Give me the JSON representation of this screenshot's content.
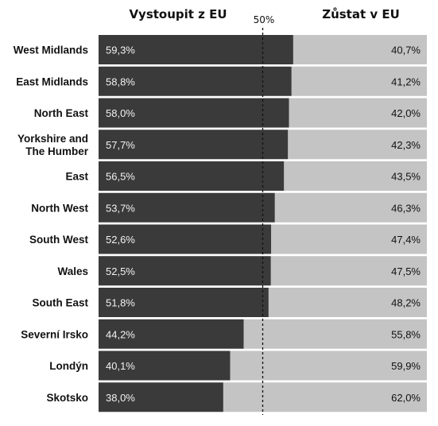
{
  "chart_data": {
    "type": "bar",
    "stacked": true,
    "orientation": "horizontal",
    "header_left": "Vystoupit z EU",
    "header_right": "Zůstat v EU",
    "reference_line_label": "50%",
    "reference_value": 50,
    "xlim": [
      0,
      100
    ],
    "colors": {
      "leave": "#3a3a3a",
      "remain": "#c4c4c4"
    },
    "rows": [
      {
        "label": [
          "West Midlands"
        ],
        "leave": 59.3,
        "remain": 40.7,
        "leave_text": "59,3%",
        "remain_text": "40,7%"
      },
      {
        "label": [
          "East Midlands"
        ],
        "leave": 58.8,
        "remain": 41.2,
        "leave_text": "58,8%",
        "remain_text": "41,2%"
      },
      {
        "label": [
          "North East"
        ],
        "leave": 58.0,
        "remain": 42.0,
        "leave_text": "58,0%",
        "remain_text": "42,0%"
      },
      {
        "label": [
          "Yorkshire and",
          "The Humber"
        ],
        "leave": 57.7,
        "remain": 42.3,
        "leave_text": "57,7%",
        "remain_text": "42,3%"
      },
      {
        "label": [
          "East"
        ],
        "leave": 56.5,
        "remain": 43.5,
        "leave_text": "56,5%",
        "remain_text": "43,5%"
      },
      {
        "label": [
          "North West"
        ],
        "leave": 53.7,
        "remain": 46.3,
        "leave_text": "53,7%",
        "remain_text": "46,3%"
      },
      {
        "label": [
          "South West"
        ],
        "leave": 52.6,
        "remain": 47.4,
        "leave_text": "52,6%",
        "remain_text": "47,4%"
      },
      {
        "label": [
          "Wales"
        ],
        "leave": 52.5,
        "remain": 47.5,
        "leave_text": "52,5%",
        "remain_text": "47,5%"
      },
      {
        "label": [
          "South East"
        ],
        "leave": 51.8,
        "remain": 48.2,
        "leave_text": "51,8%",
        "remain_text": "48,2%"
      },
      {
        "label": [
          "Severní Irsko"
        ],
        "leave": 44.2,
        "remain": 55.8,
        "leave_text": "44,2%",
        "remain_text": "55,8%"
      },
      {
        "label": [
          "Londýn"
        ],
        "leave": 40.1,
        "remain": 59.9,
        "leave_text": "40,1%",
        "remain_text": "59,9%"
      },
      {
        "label": [
          "Skotsko"
        ],
        "leave": 38.0,
        "remain": 62.0,
        "leave_text": "38,0%",
        "remain_text": "62,0%"
      }
    ]
  }
}
